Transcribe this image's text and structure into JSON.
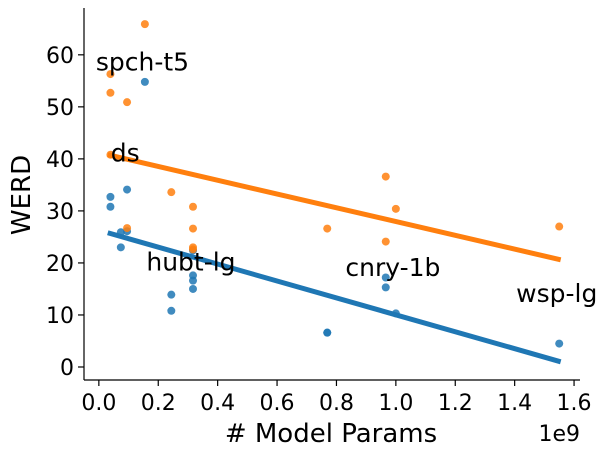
{
  "chart_data": {
    "type": "scatter",
    "title": "",
    "xlabel": "# Model Params",
    "ylabel": "WERD",
    "x_offset_label": "1e9",
    "xlim": [
      -0.05,
      1.62
    ],
    "ylim": [
      -2.5,
      69
    ],
    "x_ticks": [
      0.0,
      0.2,
      0.4,
      0.6,
      0.8,
      1.0,
      1.2,
      1.4,
      1.6
    ],
    "x_tick_labels": [
      "0.0",
      "0.2",
      "0.4",
      "0.6",
      "0.8",
      "1.0",
      "1.2",
      "1.4",
      "1.6"
    ],
    "y_ticks": [
      0,
      10,
      20,
      30,
      40,
      50,
      60
    ],
    "y_tick_labels": [
      "0",
      "10",
      "20",
      "30",
      "40",
      "50",
      "60"
    ],
    "grid": false,
    "series": [
      {
        "name": "blue",
        "color": "#1f77b4",
        "points": [
          [
            0.039,
            30.8
          ],
          [
            0.039,
            32.7
          ],
          [
            0.074,
            23.0
          ],
          [
            0.074,
            25.9
          ],
          [
            0.095,
            34.1
          ],
          [
            0.095,
            26.1
          ],
          [
            0.155,
            54.8
          ],
          [
            0.244,
            13.9
          ],
          [
            0.244,
            10.8
          ],
          [
            0.317,
            17.6
          ],
          [
            0.317,
            16.6
          ],
          [
            0.317,
            15.0
          ],
          [
            0.317,
            22.4
          ],
          [
            0.769,
            6.6
          ],
          [
            0.769,
            6.6
          ],
          [
            0.966,
            17.2
          ],
          [
            0.966,
            15.3
          ],
          [
            1.0,
            10.3
          ],
          [
            1.55,
            4.5
          ]
        ],
        "fit": {
          "x": [
            0.03,
            1.555
          ],
          "y": [
            25.8,
            1.0
          ]
        }
      },
      {
        "name": "orange",
        "color": "#ff7f0e",
        "points": [
          [
            0.039,
            56.3
          ],
          [
            0.039,
            52.7
          ],
          [
            0.039,
            40.8
          ],
          [
            0.095,
            50.9
          ],
          [
            0.095,
            26.7
          ],
          [
            0.155,
            65.9
          ],
          [
            0.244,
            33.6
          ],
          [
            0.317,
            30.8
          ],
          [
            0.317,
            26.6
          ],
          [
            0.317,
            23.0
          ],
          [
            0.317,
            22.6
          ],
          [
            0.769,
            26.6
          ],
          [
            0.966,
            36.6
          ],
          [
            0.966,
            24.1
          ],
          [
            1.0,
            30.4
          ],
          [
            1.55,
            27.0
          ]
        ],
        "fit": {
          "x": [
            0.03,
            1.555
          ],
          "y": [
            40.8,
            20.6
          ]
        }
      }
    ],
    "annotations": [
      {
        "text": "spch-t5",
        "x": -0.01,
        "y": 57.0
      },
      {
        "text": "ds",
        "x": 0.04,
        "y": 39.5
      },
      {
        "text": "hubt-lg",
        "x": 0.16,
        "y": 18.5
      },
      {
        "text": "cnry-1b",
        "x": 0.83,
        "y": 17.5
      },
      {
        "text": "wsp-lg",
        "x": 1.405,
        "y": 12.5
      }
    ]
  }
}
